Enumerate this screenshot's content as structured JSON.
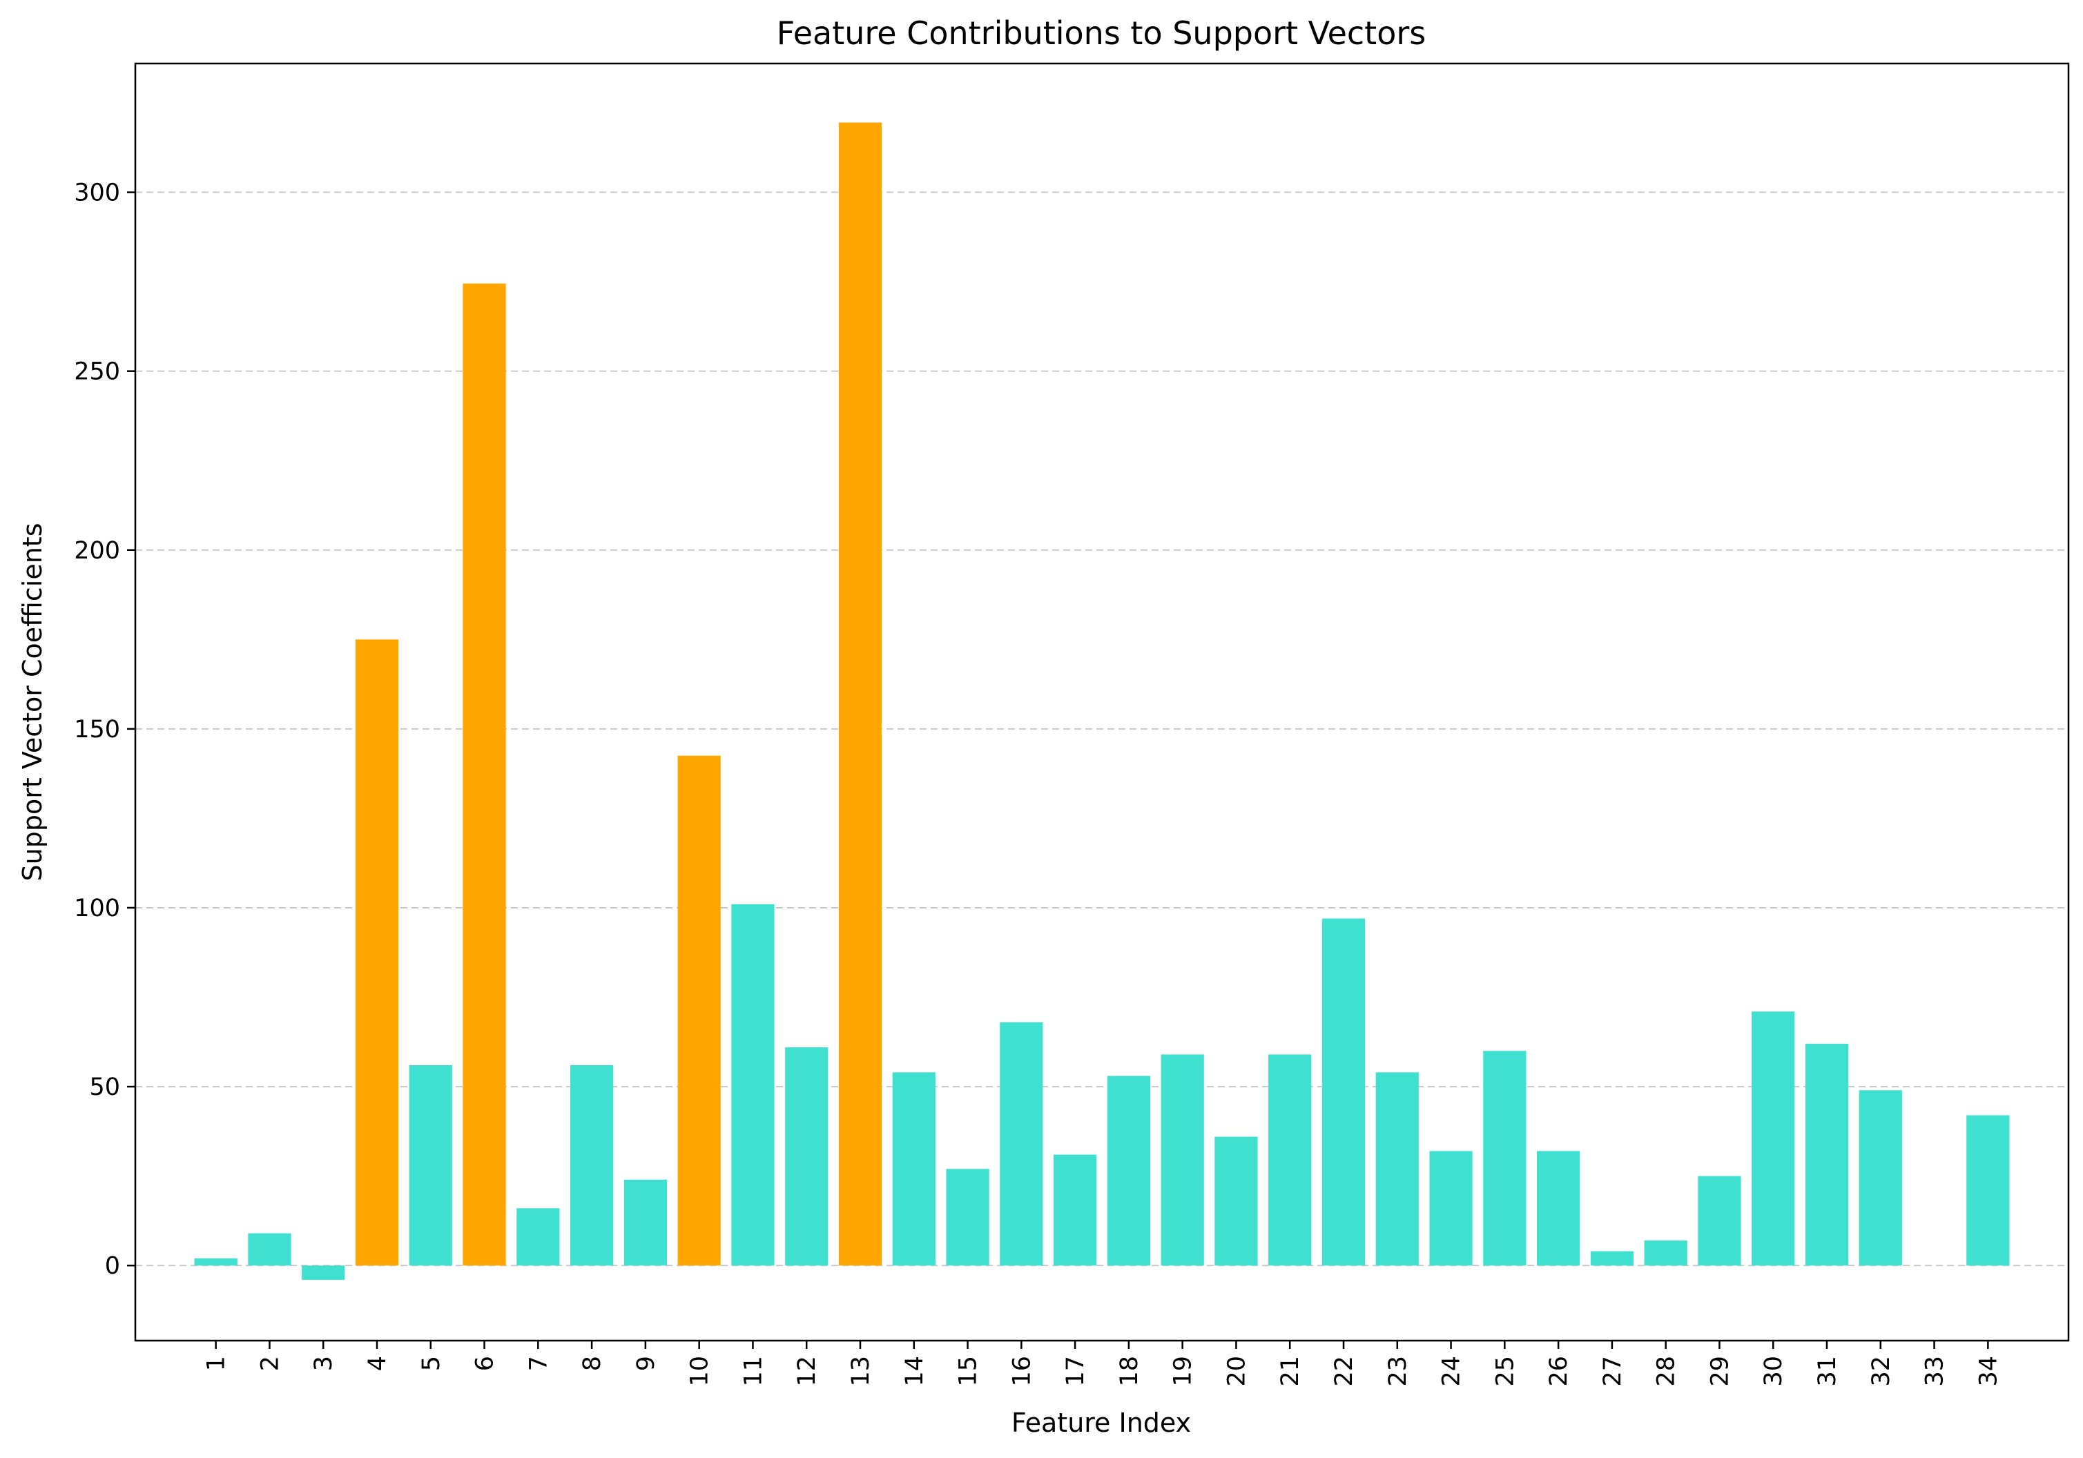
{
  "chart_data": {
    "type": "bar",
    "title": "Feature Contributions to Support Vectors",
    "xlabel": "Feature Index",
    "ylabel": "Support Vector Coefficients",
    "categories": [
      "1",
      "2",
      "3",
      "4",
      "5",
      "6",
      "7",
      "8",
      "9",
      "10",
      "11",
      "12",
      "13",
      "14",
      "15",
      "16",
      "17",
      "18",
      "19",
      "20",
      "21",
      "22",
      "23",
      "24",
      "25",
      "26",
      "27",
      "28",
      "29",
      "30",
      "31",
      "32",
      "33",
      "34"
    ],
    "values": [
      2,
      9,
      -4,
      175,
      56,
      274.5,
      16,
      56,
      24,
      142.5,
      101,
      61,
      319.5,
      54,
      27,
      68,
      31,
      53,
      59,
      36,
      59,
      97,
      54,
      32,
      60,
      32,
      4,
      7,
      25,
      71,
      62,
      49,
      0,
      42
    ],
    "highlighted": [
      "4",
      "6",
      "10",
      "13"
    ],
    "colors": {
      "default": "#40e0d0",
      "highlight": "#ffa500"
    },
    "yticks": [
      0,
      50,
      100,
      150,
      200,
      250,
      300
    ],
    "ylim": [
      -21,
      336
    ],
    "xlim": [
      -0.5,
      35.5
    ],
    "grid": "y-dashed",
    "legend": "none"
  }
}
